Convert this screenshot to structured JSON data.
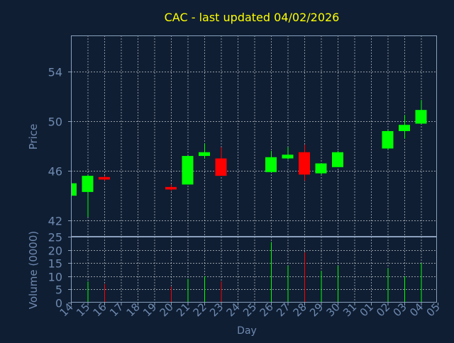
{
  "title": "CAC - last updated 04/02/2026",
  "colors": {
    "background": "#0f1e33",
    "plot_background": "#0f1e33",
    "frame": "#8aa0bc",
    "grid": "#ffffff",
    "title": "#ffff00",
    "axis_text": "#6f8ab0",
    "up": "#00ff00",
    "down": "#ff0000"
  },
  "chart_data": [
    {
      "type": "candlestick",
      "ylabel": "Price",
      "ylim": [
        40.7,
        56.9
      ],
      "yticks": [
        42,
        46,
        50,
        54
      ],
      "grid": true,
      "x_labels": [
        "14",
        "15",
        "16",
        "17",
        "18",
        "19",
        "20",
        "21",
        "22",
        "23",
        "24",
        "25",
        "26",
        "27",
        "28",
        "29",
        "30",
        "31",
        "01",
        "02",
        "03",
        "04",
        "05"
      ],
      "candles": [
        {
          "day": "14",
          "open": 44.0,
          "high": 45.1,
          "low": 44.0,
          "close": 45.0
        },
        {
          "day": "15",
          "open": 44.3,
          "high": 45.7,
          "low": 42.3,
          "close": 45.6
        },
        {
          "day": "16",
          "open": 45.5,
          "high": 45.6,
          "low": 45.2,
          "close": 45.3
        },
        {
          "day": "20",
          "open": 44.7,
          "high": 44.9,
          "low": 44.4,
          "close": 44.5
        },
        {
          "day": "21",
          "open": 44.9,
          "high": 47.2,
          "low": 44.9,
          "close": 47.2
        },
        {
          "day": "22",
          "open": 47.2,
          "high": 48.2,
          "low": 47.0,
          "close": 47.5
        },
        {
          "day": "23",
          "open": 47.0,
          "high": 47.9,
          "low": 45.6,
          "close": 45.6
        },
        {
          "day": "26",
          "open": 45.9,
          "high": 47.6,
          "low": 45.9,
          "close": 47.1
        },
        {
          "day": "27",
          "open": 47.0,
          "high": 47.9,
          "low": 46.9,
          "close": 47.3
        },
        {
          "day": "28",
          "open": 47.5,
          "high": 48.1,
          "low": 45.2,
          "close": 45.7
        },
        {
          "day": "29",
          "open": 45.8,
          "high": 46.6,
          "low": 45.7,
          "close": 46.6
        },
        {
          "day": "30",
          "open": 46.3,
          "high": 47.6,
          "low": 46.3,
          "close": 47.5
        },
        {
          "day": "02",
          "open": 47.8,
          "high": 49.3,
          "low": 47.7,
          "close": 49.2
        },
        {
          "day": "03",
          "open": 49.2,
          "high": 50.5,
          "low": 48.6,
          "close": 49.7
        },
        {
          "day": "04",
          "open": 49.8,
          "high": 51.7,
          "low": 49.8,
          "close": 50.9
        }
      ]
    },
    {
      "type": "bar",
      "ylabel": "Volume (0000)",
      "xlabel": "Day",
      "ylim": [
        0,
        25
      ],
      "yticks": [
        0,
        5,
        10,
        15,
        20,
        25
      ],
      "grid": true,
      "bars": [
        {
          "day": "15",
          "value": 8,
          "direction": "up"
        },
        {
          "day": "16",
          "value": 7,
          "direction": "down"
        },
        {
          "day": "20",
          "value": 6,
          "direction": "down"
        },
        {
          "day": "21",
          "value": 9,
          "direction": "up"
        },
        {
          "day": "22",
          "value": 10,
          "direction": "up"
        },
        {
          "day": "23",
          "value": 8,
          "direction": "down"
        },
        {
          "day": "26",
          "value": 23,
          "direction": "up"
        },
        {
          "day": "27",
          "value": 14,
          "direction": "up"
        },
        {
          "day": "28",
          "value": 19,
          "direction": "down"
        },
        {
          "day": "29",
          "value": 12,
          "direction": "up"
        },
        {
          "day": "30",
          "value": 14,
          "direction": "up"
        },
        {
          "day": "02",
          "value": 13,
          "direction": "up"
        },
        {
          "day": "03",
          "value": 10,
          "direction": "up"
        },
        {
          "day": "04",
          "value": 15,
          "direction": "up"
        }
      ]
    }
  ]
}
